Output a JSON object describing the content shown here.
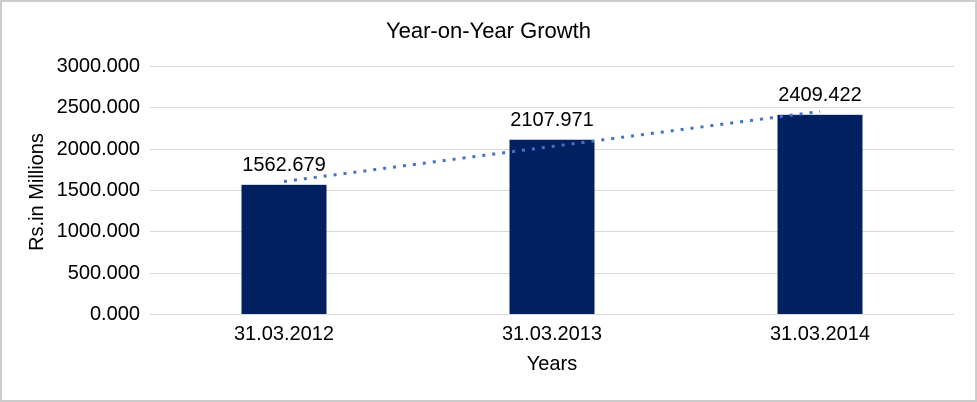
{
  "chart_data": {
    "type": "bar",
    "title": "Year-on-Year Growth",
    "xlabel": "Years",
    "ylabel": "Rs.in Millions",
    "categories": [
      "31.03.2012",
      "31.03.2013",
      "31.03.2014"
    ],
    "values": [
      1562.679,
      2107.971,
      2409.422
    ],
    "value_labels": [
      "1562.679",
      "2107.971",
      "2409.422"
    ],
    "ylim": [
      0,
      3000
    ],
    "y_tick_step": 500,
    "y_ticks": [
      {
        "value": 3000,
        "label": "3000.000"
      },
      {
        "value": 2500,
        "label": "2500.000"
      },
      {
        "value": 2000,
        "label": "2000.000"
      },
      {
        "value": 1500,
        "label": "1500.000"
      },
      {
        "value": 1000,
        "label": "1000.000"
      },
      {
        "value": 500,
        "label": "500.000"
      },
      {
        "value": 0,
        "label": "0.000"
      }
    ],
    "grid": true,
    "legend": "none",
    "bar_color": "#002060",
    "gridline_color": "#D9D9D9",
    "text_color": "#000000",
    "background_color": "#FFFFFF",
    "border_color": "#CCCCCC",
    "trendline": {
      "style": "dotted",
      "color": "#4472C4",
      "start_value": 1603.319,
      "end_value": 2450.062
    }
  }
}
